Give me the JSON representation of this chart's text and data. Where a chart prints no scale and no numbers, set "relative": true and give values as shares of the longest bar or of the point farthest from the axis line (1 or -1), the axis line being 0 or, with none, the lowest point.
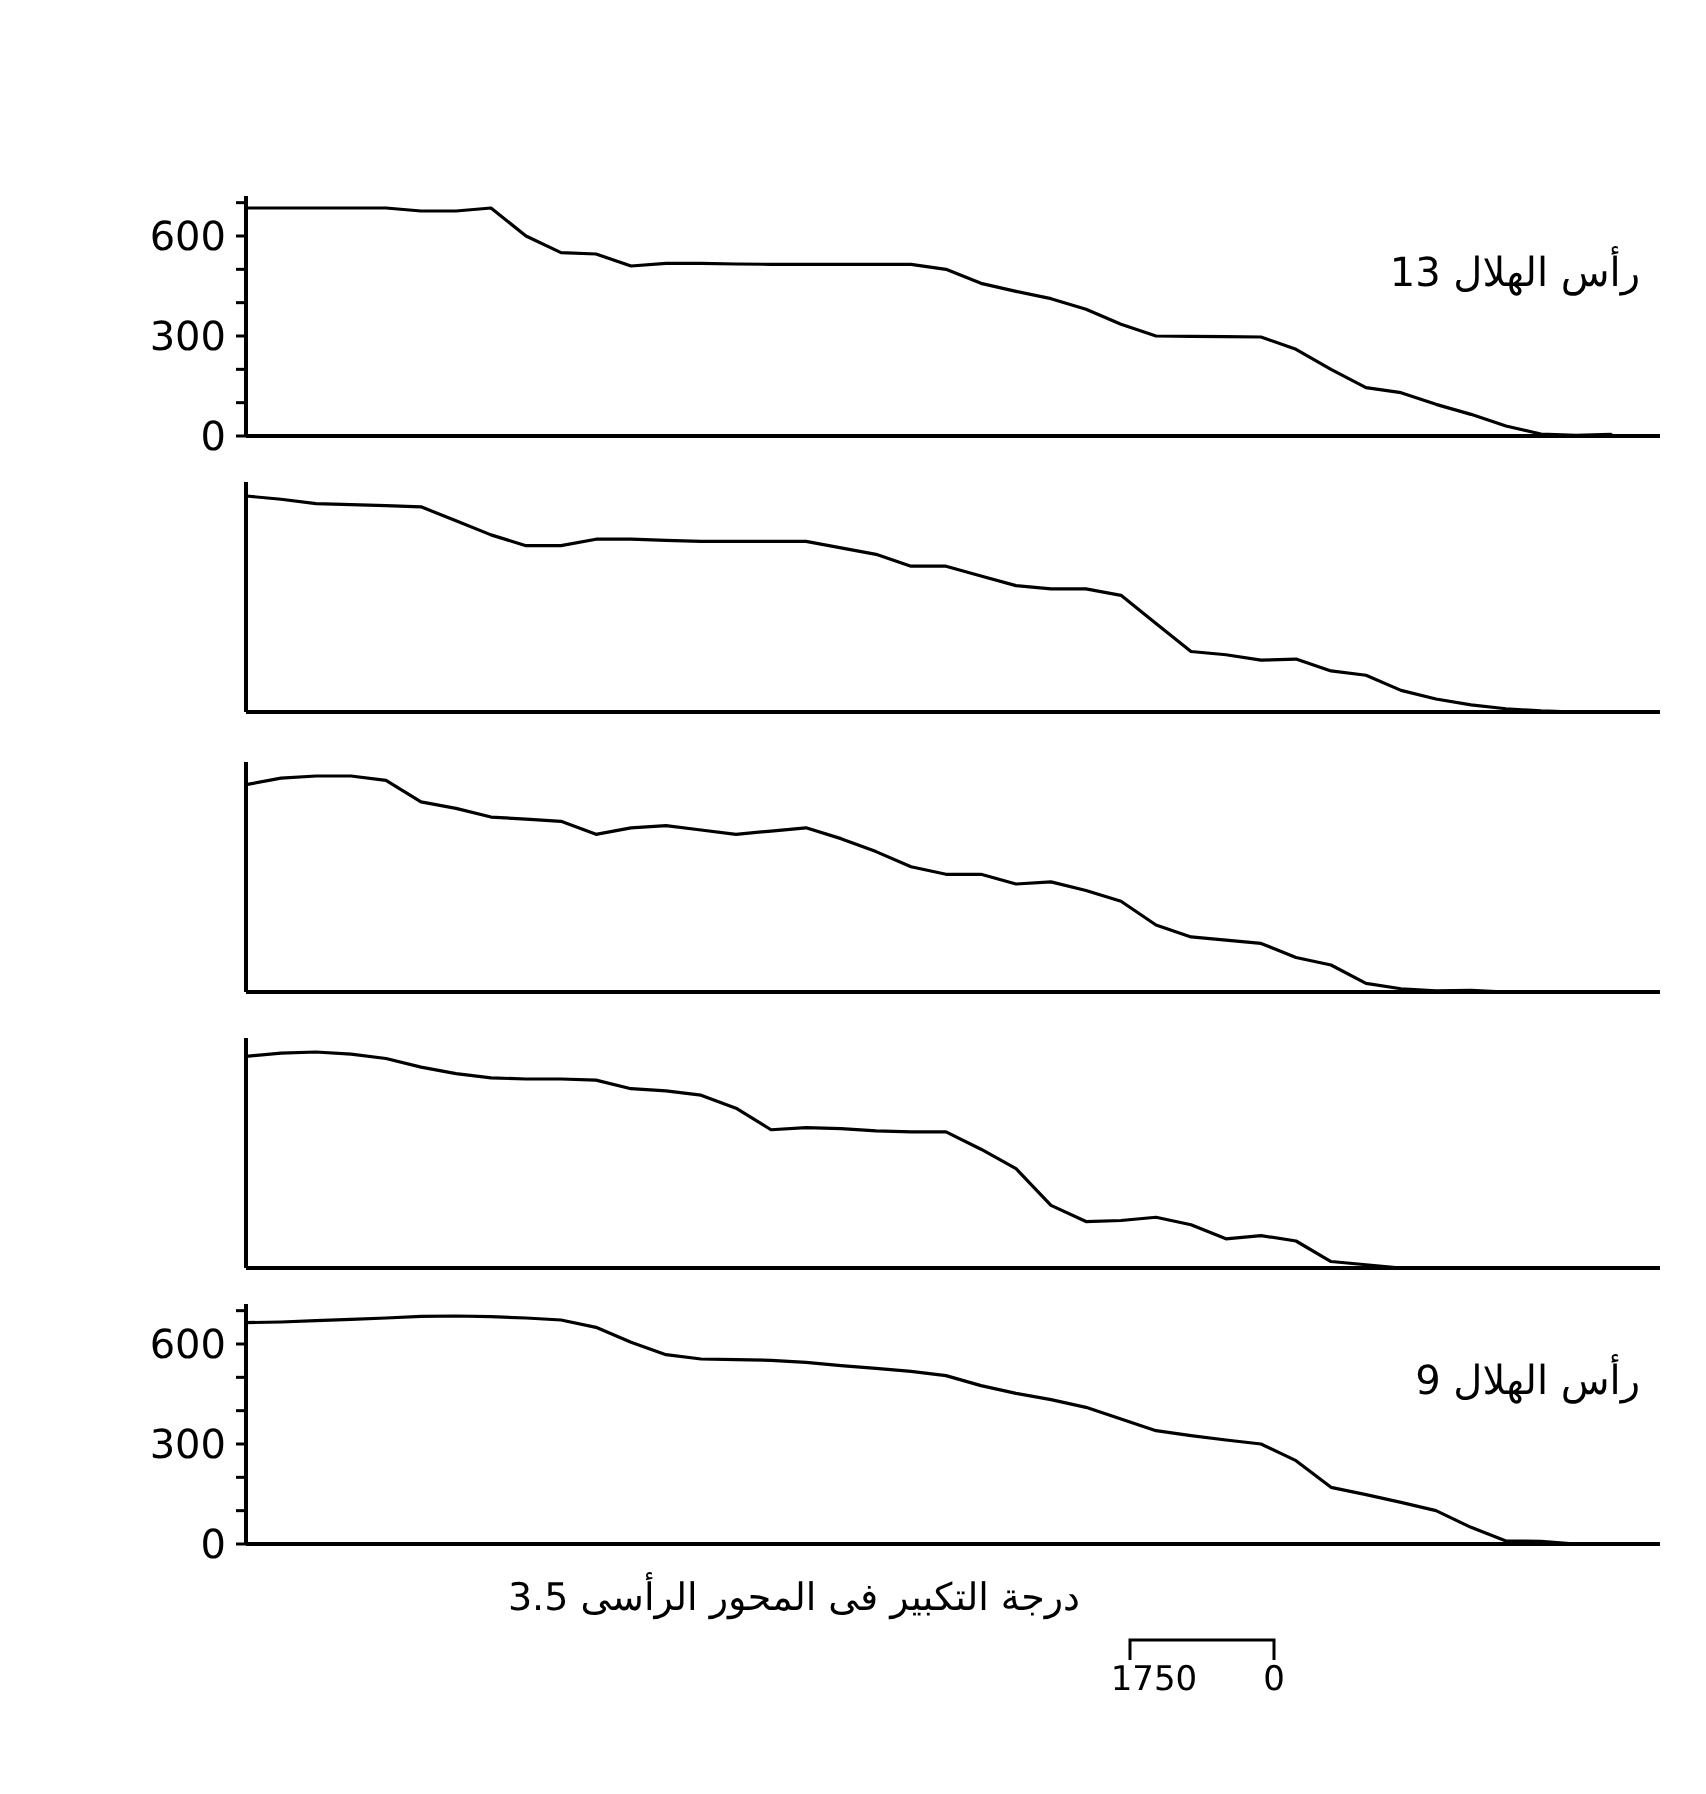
{
  "chart_data": [
    {
      "type": "line",
      "tick_labels": "y",
      "ylim": [
        0,
        720
      ],
      "yticks": [
        0,
        {
          "value": 100,
          "label": null
        },
        {
          "value": 200,
          "label": null
        },
        300,
        {
          "value": 400,
          "label": null
        },
        {
          "value": 500,
          "label": null
        },
        600,
        {
          "value": 700,
          "label": null
        }
      ],
      "annotations": [
        "رأس الهلال 13"
      ],
      "categories": [
        null,
        null,
        null,
        null,
        null,
        null,
        null,
        null,
        null,
        null,
        null,
        null,
        null,
        null,
        null,
        null,
        null,
        null,
        null,
        null,
        null,
        null,
        null,
        null,
        null,
        null,
        null,
        null,
        null,
        null,
        null,
        null,
        null,
        null,
        null,
        null,
        null,
        null,
        null,
        null,
        null
      ],
      "series": [
        {
          "color": "#000000",
          "values": [
            684,
            684,
            684,
            684,
            684,
            675,
            675,
            684,
            600,
            550,
            546,
            510,
            518,
            518,
            516,
            515,
            515,
            515,
            515,
            515,
            500,
            458,
            434,
            412,
            380,
            335,
            300,
            299,
            298,
            297,
            260,
            200,
            145,
            130,
            95,
            65,
            30,
            6,
            2,
            5,
            null
          ]
        }
      ]
    },
    {
      "type": "line",
      "tick_labels": false,
      "relative": true,
      "categories": [
        null,
        null,
        null,
        null,
        null,
        null,
        null,
        null,
        null,
        null,
        null,
        null,
        null,
        null,
        null,
        null,
        null,
        null,
        null,
        null,
        null,
        null,
        null,
        null,
        null,
        null,
        null,
        null,
        null,
        null,
        null,
        null,
        null,
        null,
        null,
        null,
        null,
        null,
        null,
        null,
        null
      ],
      "series": [
        {
          "color": "#000000",
          "values": [
            1.0,
            0.985,
            0.965,
            0.96,
            0.955,
            0.95,
            0.885,
            0.82,
            0.77,
            0.77,
            0.8,
            0.8,
            0.795,
            0.79,
            0.79,
            0.79,
            0.79,
            0.76,
            0.73,
            0.675,
            0.675,
            0.63,
            0.585,
            0.57,
            0.57,
            0.54,
            0.41,
            0.28,
            0.265,
            0.24,
            0.245,
            0.19,
            0.17,
            0.1,
            0.06,
            0.033,
            0.015,
            0.005,
            0,
            null,
            null
          ]
        }
      ]
    },
    {
      "type": "line",
      "tick_labels": false,
      "relative": true,
      "categories": [
        null,
        null,
        null,
        null,
        null,
        null,
        null,
        null,
        null,
        null,
        null,
        null,
        null,
        null,
        null,
        null,
        null,
        null,
        null,
        null,
        null,
        null,
        null,
        null,
        null,
        null,
        null,
        null,
        null,
        null,
        null,
        null,
        null,
        null,
        null,
        null,
        null,
        null,
        null,
        null,
        null
      ],
      "series": [
        {
          "color": "#000000",
          "values": [
            0.96,
            0.99,
            1,
            1,
            0.98,
            0.88,
            0.85,
            0.81,
            0.8,
            0.79,
            0.73,
            0.76,
            0.77,
            0.75,
            0.73,
            0.745,
            0.76,
            0.71,
            0.65,
            0.58,
            0.545,
            0.545,
            0.5,
            0.51,
            0.47,
            0.42,
            0.31,
            0.255,
            0.24,
            0.225,
            0.16,
            0.125,
            0.04,
            0.015,
            0.005,
            0.008,
            0,
            null,
            null,
            null,
            null
          ]
        }
      ]
    },
    {
      "type": "line",
      "tick_labels": false,
      "relative": true,
      "categories": [
        null,
        null,
        null,
        null,
        null,
        null,
        null,
        null,
        null,
        null,
        null,
        null,
        null,
        null,
        null,
        null,
        null,
        null,
        null,
        null,
        null,
        null,
        null,
        null,
        null,
        null,
        null,
        null,
        null,
        null,
        null,
        null,
        null,
        null,
        null,
        null,
        null,
        null,
        null,
        null,
        null
      ],
      "series": [
        {
          "color": "#000000",
          "values": [
            0.98,
            0.995,
            1,
            0.99,
            0.97,
            0.93,
            0.9,
            0.88,
            0.875,
            0.875,
            0.87,
            0.83,
            0.82,
            0.8,
            0.74,
            0.64,
            0.65,
            0.645,
            0.635,
            0.63,
            0.63,
            0.55,
            0.46,
            0.29,
            0.215,
            0.22,
            0.235,
            0.2,
            0.135,
            0.15,
            0.125,
            0.03,
            0.015,
            0,
            0,
            0,
            null,
            null,
            null,
            null,
            null
          ]
        }
      ]
    },
    {
      "type": "line",
      "tick_labels": "y",
      "ylim": [
        0,
        720
      ],
      "yticks": [
        0,
        {
          "value": 100,
          "label": null
        },
        {
          "value": 200,
          "label": null
        },
        300,
        {
          "value": 400,
          "label": null
        },
        {
          "value": 500,
          "label": null
        },
        600,
        {
          "value": 700,
          "label": null
        }
      ],
      "annotations": [
        "رأس الهلال 9"
      ],
      "categories": [
        null,
        null,
        null,
        null,
        null,
        null,
        null,
        null,
        null,
        null,
        null,
        null,
        null,
        null,
        null,
        null,
        null,
        null,
        null,
        null,
        null,
        null,
        null,
        null,
        null,
        null,
        null,
        null,
        null,
        null,
        null,
        null,
        null,
        null,
        null,
        null,
        null,
        null,
        null,
        null,
        null
      ],
      "series": [
        {
          "color": "#000000",
          "values": [
            664,
            666,
            670,
            674,
            678,
            683,
            684,
            682,
            678,
            672,
            650,
            605,
            568,
            555,
            553,
            551,
            545,
            535,
            527,
            518,
            505,
            475,
            452,
            433,
            410,
            375,
            340,
            325,
            312,
            300,
            250,
            170,
            148,
            125,
            100,
            50,
            9,
            8,
            0,
            null,
            null
          ]
        }
      ]
    },
    {
      "type": "other",
      "annotations": [
        "درجة التكبير فى المحور الرأسى 3.5",
        "1750",
        "0"
      ]
    }
  ]
}
